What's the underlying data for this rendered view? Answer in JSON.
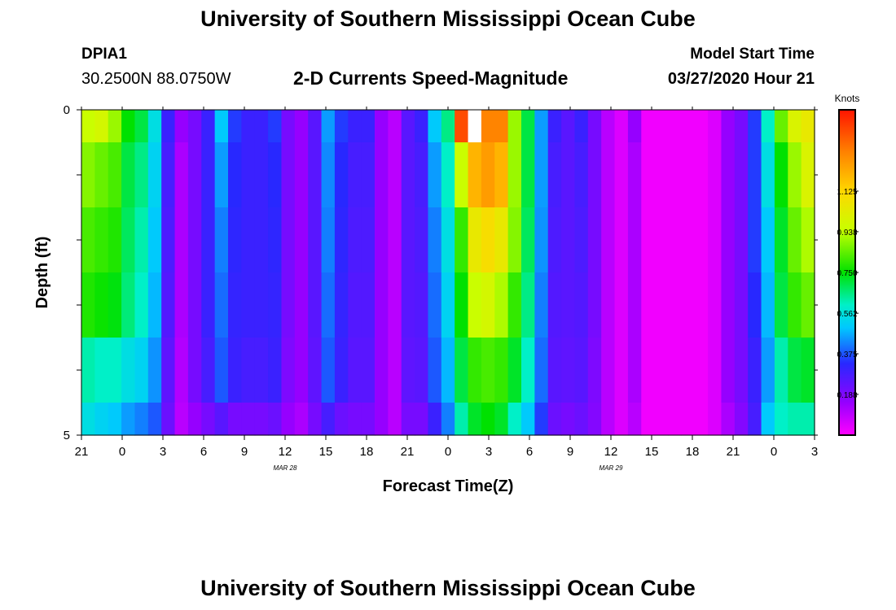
{
  "header": {
    "title": "University of Southern Mississippi Ocean Cube",
    "station_id": "DPIA1",
    "station_coords": "30.2500N 88.0750W",
    "run_label": "Model Start Time",
    "run_time": "03/27/2020 Hour 21"
  },
  "footer": {
    "title": "University of Southern Mississippi Ocean Cube"
  },
  "chart_data": {
    "type": "heatmap",
    "title": "2-D Currents Speed-Magnitude",
    "xlabel": "Forecast Time(Z)",
    "ylabel": "Depth (ft)",
    "x_tick_labels": [
      "21",
      "0",
      "3",
      "6",
      "9",
      "12",
      "15",
      "18",
      "21",
      "0",
      "3",
      "6",
      "9",
      "12",
      "15",
      "18",
      "21",
      "0",
      "3"
    ],
    "x_date_labels": [
      {
        "label": "MAR 28",
        "at_tick": 5
      },
      {
        "label": "MAR 29",
        "at_tick": 13
      }
    ],
    "y_tick_labels": [
      "0",
      "5"
    ],
    "ylim": [
      0,
      5
    ],
    "colorbar": {
      "unit": "Knots",
      "min": 0,
      "max": 1.5,
      "tick_values": [
        0.188,
        0.375,
        0.562,
        0.75,
        0.938,
        1.125
      ],
      "tick_labels": [
        "0.188",
        "0.375",
        "0.562",
        "0.750",
        "0.938",
        "1.125"
      ]
    },
    "x_hours_from_start": [
      0,
      1,
      2,
      3,
      4,
      5,
      6,
      7,
      8,
      9,
      10,
      11,
      12,
      13,
      14,
      15,
      16,
      17,
      18,
      19,
      20,
      21,
      22,
      23,
      24,
      25,
      26,
      27,
      28,
      29,
      30,
      31,
      32,
      33,
      34,
      35,
      36,
      37,
      38,
      39,
      40,
      41,
      42,
      43,
      44,
      45,
      46,
      47,
      48,
      49,
      50,
      51,
      52,
      53,
      54
    ],
    "depth_rows": [
      {
        "depth_range": "0-0.5",
        "values": [
          0.95,
          0.98,
          0.9,
          0.75,
          0.7,
          0.55,
          0.3,
          0.15,
          0.2,
          0.3,
          0.5,
          0.35,
          0.3,
          0.3,
          0.35,
          0.2,
          0.15,
          0.25,
          0.45,
          0.35,
          0.3,
          0.3,
          0.15,
          0.1,
          0.25,
          0.3,
          0.5,
          0.65,
          1.4,
          1.5,
          1.3,
          1.3,
          0.9,
          0.7,
          0.45,
          0.3,
          0.25,
          0.3,
          0.2,
          0.1,
          0.05,
          0.15,
          0.02,
          0.02,
          0.02,
          0.02,
          0.02,
          0.05,
          0.15,
          0.2,
          0.35,
          0.6,
          0.85,
          1.0,
          1.05
        ]
      },
      {
        "depth_range": "0.5-1.5",
        "values": [
          0.88,
          0.85,
          0.82,
          0.7,
          0.65,
          0.52,
          0.28,
          0.12,
          0.2,
          0.3,
          0.45,
          0.33,
          0.3,
          0.3,
          0.33,
          0.2,
          0.15,
          0.25,
          0.43,
          0.33,
          0.28,
          0.28,
          0.15,
          0.1,
          0.25,
          0.28,
          0.45,
          0.6,
          0.95,
          1.2,
          1.25,
          1.2,
          0.9,
          0.7,
          0.45,
          0.28,
          0.25,
          0.28,
          0.2,
          0.1,
          0.05,
          0.12,
          0.02,
          0.02,
          0.02,
          0.02,
          0.02,
          0.05,
          0.15,
          0.2,
          0.35,
          0.55,
          0.75,
          0.9,
          1.0
        ]
      },
      {
        "depth_range": "1.5-2.5",
        "values": [
          0.82,
          0.8,
          0.78,
          0.68,
          0.62,
          0.5,
          0.27,
          0.12,
          0.2,
          0.3,
          0.42,
          0.32,
          0.3,
          0.3,
          0.32,
          0.2,
          0.15,
          0.25,
          0.42,
          0.32,
          0.27,
          0.27,
          0.15,
          0.1,
          0.25,
          0.27,
          0.42,
          0.55,
          0.8,
          1.05,
          1.1,
          1.05,
          0.88,
          0.68,
          0.44,
          0.27,
          0.25,
          0.27,
          0.2,
          0.1,
          0.05,
          0.12,
          0.02,
          0.02,
          0.02,
          0.02,
          0.02,
          0.05,
          0.15,
          0.2,
          0.35,
          0.5,
          0.72,
          0.85,
          0.92
        ]
      },
      {
        "depth_range": "2.5-3.5",
        "values": [
          0.78,
          0.76,
          0.74,
          0.66,
          0.6,
          0.48,
          0.26,
          0.12,
          0.2,
          0.3,
          0.4,
          0.31,
          0.3,
          0.3,
          0.31,
          0.2,
          0.15,
          0.25,
          0.4,
          0.31,
          0.26,
          0.26,
          0.15,
          0.1,
          0.25,
          0.26,
          0.4,
          0.52,
          0.75,
          0.95,
          0.98,
          0.92,
          0.8,
          0.65,
          0.42,
          0.26,
          0.25,
          0.26,
          0.2,
          0.1,
          0.05,
          0.12,
          0.02,
          0.02,
          0.02,
          0.02,
          0.02,
          0.05,
          0.15,
          0.2,
          0.33,
          0.48,
          0.7,
          0.8,
          0.85
        ]
      },
      {
        "depth_range": "3.5-4.5",
        "values": [
          0.62,
          0.6,
          0.6,
          0.55,
          0.52,
          0.44,
          0.24,
          0.11,
          0.2,
          0.28,
          0.38,
          0.3,
          0.28,
          0.28,
          0.3,
          0.19,
          0.15,
          0.24,
          0.38,
          0.3,
          0.25,
          0.25,
          0.15,
          0.1,
          0.24,
          0.25,
          0.38,
          0.48,
          0.7,
          0.8,
          0.82,
          0.8,
          0.72,
          0.6,
          0.4,
          0.25,
          0.24,
          0.25,
          0.19,
          0.1,
          0.05,
          0.12,
          0.02,
          0.02,
          0.02,
          0.02,
          0.02,
          0.05,
          0.15,
          0.2,
          0.3,
          0.45,
          0.62,
          0.7,
          0.72
        ]
      },
      {
        "depth_range": "4.5-5",
        "values": [
          0.55,
          0.52,
          0.5,
          0.45,
          0.42,
          0.38,
          0.22,
          0.1,
          0.15,
          0.2,
          0.25,
          0.2,
          0.2,
          0.2,
          0.22,
          0.15,
          0.12,
          0.2,
          0.28,
          0.22,
          0.2,
          0.2,
          0.15,
          0.1,
          0.2,
          0.2,
          0.3,
          0.42,
          0.62,
          0.72,
          0.75,
          0.72,
          0.6,
          0.5,
          0.35,
          0.22,
          0.2,
          0.22,
          0.18,
          0.1,
          0.05,
          0.1,
          0.02,
          0.02,
          0.02,
          0.02,
          0.02,
          0.05,
          0.12,
          0.18,
          0.28,
          0.5,
          0.6,
          0.62,
          0.62
        ]
      }
    ],
    "blank_cell": {
      "depth_range": "0-0.5",
      "hour": 29
    }
  }
}
